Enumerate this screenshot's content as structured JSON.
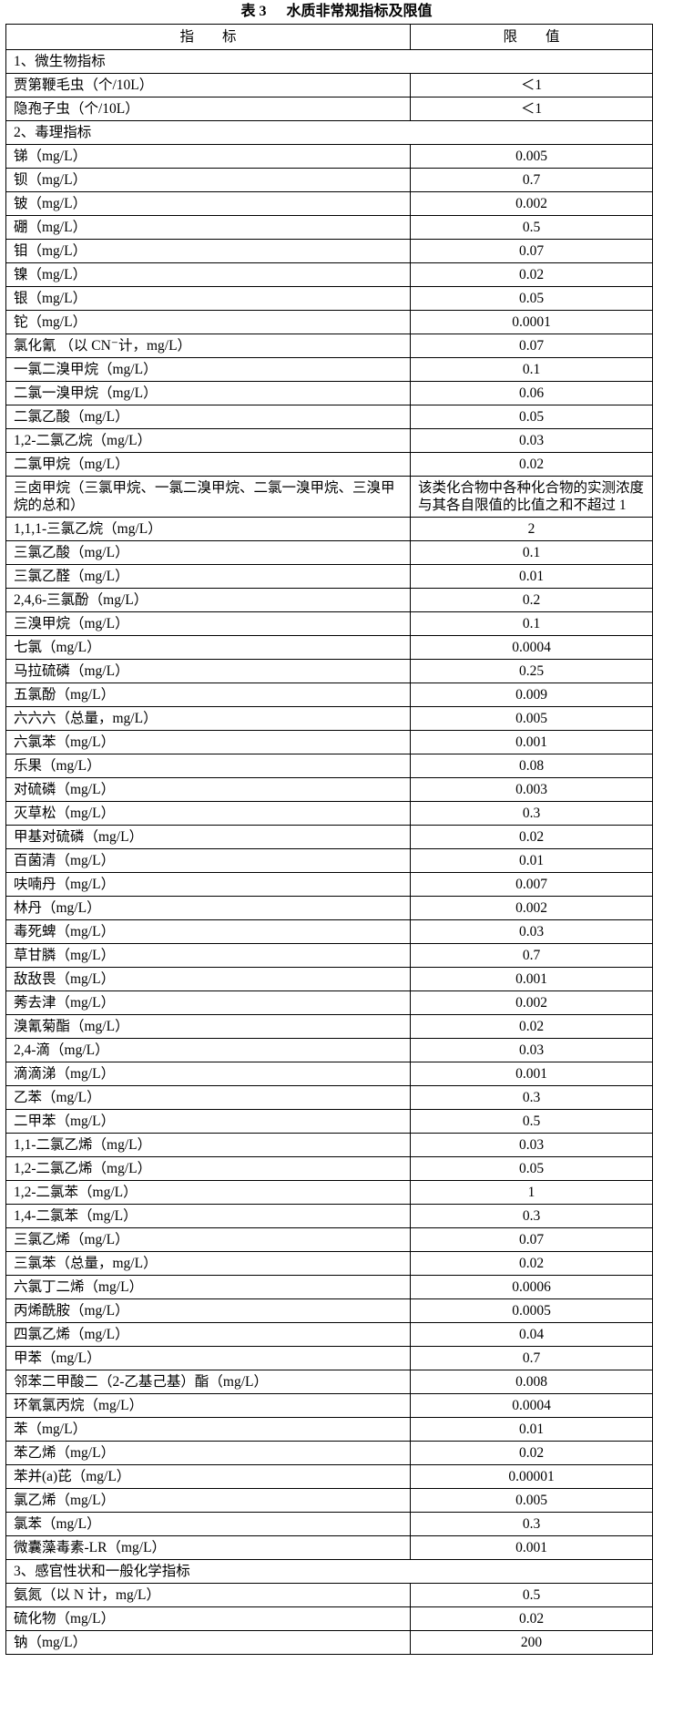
{
  "page": {
    "title_label": "表 3",
    "title_text": "水质非常规指标及限值"
  },
  "table": {
    "header": {
      "indicator": "指　　标",
      "limit": "限　　值"
    },
    "rows": [
      {
        "type": "section",
        "label": "1、微生物指标"
      },
      {
        "type": "data",
        "indicator": "贾第鞭毛虫（个/10L）",
        "limit": "＜1"
      },
      {
        "type": "data",
        "indicator": "隐孢子虫（个/10L）",
        "limit": "＜1"
      },
      {
        "type": "section",
        "label": "2、毒理指标"
      },
      {
        "type": "data",
        "indicator": "锑（mg/L）",
        "limit": "0.005"
      },
      {
        "type": "data",
        "indicator": "钡（mg/L）",
        "limit": "0.7"
      },
      {
        "type": "data",
        "indicator": "铍（mg/L）",
        "limit": "0.002"
      },
      {
        "type": "data",
        "indicator": "硼（mg/L）",
        "limit": "0.5"
      },
      {
        "type": "data",
        "indicator": "钼（mg/L）",
        "limit": "0.07"
      },
      {
        "type": "data",
        "indicator": "镍（mg/L）",
        "limit": "0.02"
      },
      {
        "type": "data",
        "indicator": "银（mg/L）",
        "limit": "0.05"
      },
      {
        "type": "data",
        "indicator": "铊（mg/L）",
        "limit": "0.0001"
      },
      {
        "type": "data",
        "indicator": "氯化氰 （以 CN⁻计，mg/L）",
        "limit": "0.07"
      },
      {
        "type": "data",
        "indicator": "一氯二溴甲烷（mg/L）",
        "limit": "0.1"
      },
      {
        "type": "data",
        "indicator": "二氯一溴甲烷（mg/L）",
        "limit": "0.06"
      },
      {
        "type": "data",
        "indicator": "二氯乙酸（mg/L）",
        "limit": "0.05"
      },
      {
        "type": "data",
        "indicator": "1,2-二氯乙烷（mg/L）",
        "limit": "0.03"
      },
      {
        "type": "data",
        "indicator": "二氯甲烷（mg/L）",
        "limit": "0.02"
      },
      {
        "type": "data",
        "indicator": "三卤甲烷（三氯甲烷、一氯二溴甲烷、二氯一溴甲烷、三溴甲烷的总和）",
        "limit": "该类化合物中各种化合物的实测浓度与其各自限值的比值之和不超过 1"
      },
      {
        "type": "data",
        "indicator": "1,1,1-三氯乙烷（mg/L）",
        "limit": "2"
      },
      {
        "type": "data",
        "indicator": "三氯乙酸（mg/L）",
        "limit": "0.1"
      },
      {
        "type": "data",
        "indicator": "三氯乙醛（mg/L）",
        "limit": "0.01"
      },
      {
        "type": "data",
        "indicator": "2,4,6-三氯酚（mg/L）",
        "limit": "0.2"
      },
      {
        "type": "data",
        "indicator": "三溴甲烷（mg/L）",
        "limit": "0.1"
      },
      {
        "type": "data",
        "indicator": "七氯（mg/L）",
        "limit": "0.0004"
      },
      {
        "type": "data",
        "indicator": "马拉硫磷（mg/L）",
        "limit": "0.25"
      },
      {
        "type": "data",
        "indicator": "五氯酚（mg/L）",
        "limit": "0.009"
      },
      {
        "type": "data",
        "indicator": "六六六（总量，mg/L）",
        "limit": "0.005"
      },
      {
        "type": "data",
        "indicator": "六氯苯（mg/L）",
        "limit": "0.001"
      },
      {
        "type": "data",
        "indicator": "乐果（mg/L）",
        "limit": "0.08"
      },
      {
        "type": "data",
        "indicator": "对硫磷（mg/L）",
        "limit": "0.003"
      },
      {
        "type": "data",
        "indicator": "灭草松（mg/L）",
        "limit": "0.3"
      },
      {
        "type": "data",
        "indicator": "甲基对硫磷（mg/L）",
        "limit": "0.02"
      },
      {
        "type": "data",
        "indicator": "百菌清（mg/L）",
        "limit": "0.01"
      },
      {
        "type": "data",
        "indicator": "呋喃丹（mg/L）",
        "limit": "0.007"
      },
      {
        "type": "data",
        "indicator": "林丹（mg/L）",
        "limit": "0.002"
      },
      {
        "type": "data",
        "indicator": "毒死蜱（mg/L）",
        "limit": "0.03"
      },
      {
        "type": "data",
        "indicator": "草甘膦（mg/L）",
        "limit": "0.7"
      },
      {
        "type": "data",
        "indicator": "敌敌畏（mg/L）",
        "limit": "0.001"
      },
      {
        "type": "data",
        "indicator": "莠去津（mg/L）",
        "limit": "0.002"
      },
      {
        "type": "data",
        "indicator": "溴氰菊酯（mg/L）",
        "limit": "0.02"
      },
      {
        "type": "data",
        "indicator": "2,4-滴（mg/L）",
        "limit": "0.03"
      },
      {
        "type": "data",
        "indicator": "滴滴涕（mg/L）",
        "limit": "0.001"
      },
      {
        "type": "data",
        "indicator": "乙苯（mg/L）",
        "limit": "0.3"
      },
      {
        "type": "data",
        "indicator": "二甲苯（mg/L）",
        "limit": "0.5"
      },
      {
        "type": "data",
        "indicator": "1,1-二氯乙烯（mg/L）",
        "limit": "0.03"
      },
      {
        "type": "data",
        "indicator": "1,2-二氯乙烯（mg/L）",
        "limit": "0.05"
      },
      {
        "type": "data",
        "indicator": "1,2-二氯苯（mg/L）",
        "limit": "1"
      },
      {
        "type": "data",
        "indicator": "1,4-二氯苯（mg/L）",
        "limit": "0.3"
      },
      {
        "type": "data",
        "indicator": "三氯乙烯（mg/L）",
        "limit": "0.07"
      },
      {
        "type": "data",
        "indicator": "三氯苯（总量，mg/L）",
        "limit": "0.02"
      },
      {
        "type": "data",
        "indicator": "六氯丁二烯（mg/L）",
        "limit": "0.0006"
      },
      {
        "type": "data",
        "indicator": "丙烯酰胺（mg/L）",
        "limit": "0.0005"
      },
      {
        "type": "data",
        "indicator": "四氯乙烯（mg/L）",
        "limit": "0.04"
      },
      {
        "type": "data",
        "indicator": "甲苯（mg/L）",
        "limit": "0.7"
      },
      {
        "type": "data",
        "indicator": "邻苯二甲酸二（2-乙基己基）酯（mg/L）",
        "limit": "0.008"
      },
      {
        "type": "data",
        "indicator": "环氧氯丙烷（mg/L）",
        "limit": "0.0004"
      },
      {
        "type": "data",
        "indicator": "苯（mg/L）",
        "limit": "0.01"
      },
      {
        "type": "data",
        "indicator": "苯乙烯（mg/L）",
        "limit": "0.02"
      },
      {
        "type": "data",
        "indicator": "苯并(a)芘（mg/L）",
        "limit": "0.00001"
      },
      {
        "type": "data",
        "indicator": "氯乙烯（mg/L）",
        "limit": "0.005"
      },
      {
        "type": "data",
        "indicator": "氯苯（mg/L）",
        "limit": "0.3"
      },
      {
        "type": "data",
        "indicator": "微囊藻毒素-LR（mg/L）",
        "limit": "0.001"
      },
      {
        "type": "section",
        "label": "3、感官性状和一般化学指标"
      },
      {
        "type": "data",
        "indicator": "氨氮（以 N 计，mg/L）",
        "limit": "0.5"
      },
      {
        "type": "data",
        "indicator": "硫化物（mg/L）",
        "limit": "0.02"
      },
      {
        "type": "data",
        "indicator": "钠（mg/L）",
        "limit": "200"
      }
    ]
  }
}
